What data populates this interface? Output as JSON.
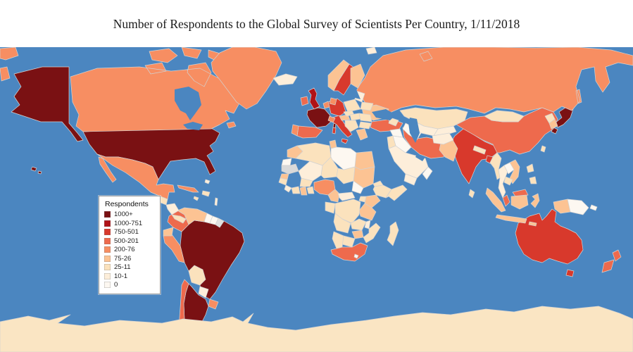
{
  "title": "Number of Respondents to the Global Survey of Scientists Per Country, 1/11/2018",
  "chart_data": {
    "type": "heatmap",
    "subtype": "choropleth-world-map",
    "title": "Number of Respondents to the Global Survey of Scientists Per Country, 1/11/2018",
    "ocean_color": "#4b86c0",
    "no_data_color": "#d9d9d9",
    "antarctica_color": "#fae5c3",
    "legend_position": "lower-left",
    "legend": {
      "title": "Respondents",
      "classes": [
        {
          "label": "1000+",
          "color": "#7a1113"
        },
        {
          "label": "1000-751",
          "color": "#b01217"
        },
        {
          "label": "750-501",
          "color": "#d8392c"
        },
        {
          "label": "500-201",
          "color": "#ee6a4d"
        },
        {
          "label": "200-76",
          "color": "#f78e62"
        },
        {
          "label": "75-26",
          "color": "#fcc393"
        },
        {
          "label": "25-11",
          "color": "#fbe2bd"
        },
        {
          "label": "10-1",
          "color": "#fdeeda"
        },
        {
          "label": "0",
          "color": "#fdf8f1"
        }
      ]
    },
    "countries": [
      {
        "id": "united-states",
        "label": "United States",
        "class": "1000+"
      },
      {
        "id": "france",
        "label": "France",
        "class": "1000+"
      },
      {
        "id": "brazil",
        "label": "Brazil",
        "class": "1000+"
      },
      {
        "id": "argentina",
        "label": "Argentina",
        "class": "1000+"
      },
      {
        "id": "japan",
        "label": "Japan",
        "class": "1000+"
      },
      {
        "id": "united-kingdom",
        "label": "United Kingdom",
        "class": "1000-751"
      },
      {
        "id": "germany",
        "label": "Germany",
        "class": "750-501"
      },
      {
        "id": "italy",
        "label": "Italy",
        "class": "750-501"
      },
      {
        "id": "sweden",
        "label": "Sweden",
        "class": "750-501"
      },
      {
        "id": "india",
        "label": "India",
        "class": "750-501"
      },
      {
        "id": "bangladesh",
        "label": "Bangladesh",
        "class": "750-501"
      },
      {
        "id": "australia",
        "label": "Australia",
        "class": "750-501"
      },
      {
        "id": "spain",
        "label": "Spain",
        "class": "500-201"
      },
      {
        "id": "ireland",
        "label": "Ireland",
        "class": "500-201"
      },
      {
        "id": "chile",
        "label": "Chile",
        "class": "500-201"
      },
      {
        "id": "colombia",
        "label": "Colombia",
        "class": "500-201"
      },
      {
        "id": "turkey",
        "label": "Turkey",
        "class": "500-201"
      },
      {
        "id": "iran",
        "label": "Iran",
        "class": "500-201"
      },
      {
        "id": "china",
        "label": "China",
        "class": "500-201"
      },
      {
        "id": "malaysia",
        "label": "Malaysia",
        "class": "500-201"
      },
      {
        "id": "new-zealand",
        "label": "New Zealand",
        "class": "500-201"
      },
      {
        "id": "south-africa",
        "label": "South Africa",
        "class": "500-201"
      },
      {
        "id": "canada",
        "label": "Canada",
        "class": "200-76"
      },
      {
        "id": "greenland",
        "label": "Greenland",
        "class": "200-76"
      },
      {
        "id": "mexico",
        "label": "Mexico",
        "class": "200-76"
      },
      {
        "id": "cuba",
        "label": "Cuba",
        "class": "200-76"
      },
      {
        "id": "russia",
        "label": "Russia",
        "class": "200-76"
      },
      {
        "id": "peru",
        "label": "Peru",
        "class": "200-76"
      },
      {
        "id": "uruguay",
        "label": "Uruguay",
        "class": "200-76"
      },
      {
        "id": "portugal",
        "label": "Portugal",
        "class": "200-76"
      },
      {
        "id": "switzerland",
        "label": "Switzerland",
        "class": "200-76"
      },
      {
        "id": "denmark",
        "label": "Denmark",
        "class": "200-76"
      },
      {
        "id": "belgium-netherlands",
        "label": "Belgium / Netherlands",
        "class": "200-76"
      },
      {
        "id": "nigeria",
        "label": "Nigeria",
        "class": "200-76"
      },
      {
        "id": "venezuela",
        "label": "Venezuela",
        "class": "75-26"
      },
      {
        "id": "ecuador",
        "label": "Ecuador",
        "class": "75-26"
      },
      {
        "id": "norway",
        "label": "Norway",
        "class": "75-26"
      },
      {
        "id": "finland",
        "label": "Finland",
        "class": "75-26"
      },
      {
        "id": "ukraine",
        "label": "Ukraine",
        "class": "75-26"
      },
      {
        "id": "greece",
        "label": "Greece",
        "class": "75-26"
      },
      {
        "id": "austria",
        "label": "Austria",
        "class": "75-26"
      },
      {
        "id": "pakistan",
        "label": "Pakistan",
        "class": "75-26"
      },
      {
        "id": "vietnam",
        "label": "Vietnam",
        "class": "75-26"
      },
      {
        "id": "south-korea",
        "label": "South Korea",
        "class": "75-26"
      },
      {
        "id": "indonesia",
        "label": "Indonesia",
        "class": "75-26"
      },
      {
        "id": "papua-indonesia",
        "label": "Papua (Indonesia)",
        "class": "75-26"
      },
      {
        "id": "morocco",
        "label": "Morocco",
        "class": "75-26"
      },
      {
        "id": "tunisia",
        "label": "Tunisia",
        "class": "75-26"
      },
      {
        "id": "egypt",
        "label": "Egypt",
        "class": "75-26"
      },
      {
        "id": "sudan",
        "label": "Sudan",
        "class": "75-26"
      },
      {
        "id": "senegal",
        "label": "Senegal",
        "class": "75-26"
      },
      {
        "id": "ghana",
        "label": "Ghana",
        "class": "75-26"
      },
      {
        "id": "cameroon",
        "label": "Cameroon",
        "class": "75-26"
      },
      {
        "id": "kenya",
        "label": "Kenya",
        "class": "75-26"
      },
      {
        "id": "tanzania",
        "label": "Tanzania",
        "class": "75-26"
      },
      {
        "id": "zimbabwe",
        "label": "Zimbabwe",
        "class": "75-26"
      },
      {
        "id": "poland",
        "label": "Poland",
        "class": "25-11"
      },
      {
        "id": "czechia",
        "label": "Czechia",
        "class": "25-11"
      },
      {
        "id": "hungary-slovakia",
        "label": "Hungary / Slovakia",
        "class": "25-11"
      },
      {
        "id": "balkans",
        "label": "Balkans",
        "class": "25-11"
      },
      {
        "id": "romania",
        "label": "Romania",
        "class": "25-11"
      },
      {
        "id": "bulgaria",
        "label": "Bulgaria",
        "class": "25-11"
      },
      {
        "id": "belarus",
        "label": "Belarus",
        "class": "25-11"
      },
      {
        "id": "caucasus",
        "label": "Caucasus",
        "class": "25-11"
      },
      {
        "id": "mongolia",
        "label": "Mongolia",
        "class": "25-11"
      },
      {
        "id": "nepal",
        "label": "Nepal",
        "class": "25-11"
      },
      {
        "id": "myanmar",
        "label": "Myanmar",
        "class": "25-11"
      },
      {
        "id": "cambodia",
        "label": "Cambodia",
        "class": "25-11"
      },
      {
        "id": "sri-lanka",
        "label": "Sri Lanka",
        "class": "25-11"
      },
      {
        "id": "north-korea",
        "label": "North Korea",
        "class": "25-11"
      },
      {
        "id": "taiwan",
        "label": "Taiwan",
        "class": "25-11"
      },
      {
        "id": "philippines",
        "label": "Philippines",
        "class": "25-11"
      },
      {
        "id": "algeria",
        "label": "Algeria",
        "class": "25-11"
      },
      {
        "id": "niger",
        "label": "Niger",
        "class": "25-11"
      },
      {
        "id": "chad",
        "label": "Chad",
        "class": "25-11"
      },
      {
        "id": "eritrea",
        "label": "Eritrea",
        "class": "25-11"
      },
      {
        "id": "ethiopia",
        "label": "Ethiopia",
        "class": "25-11"
      },
      {
        "id": "somalia",
        "label": "Somalia",
        "class": "25-11"
      },
      {
        "id": "guinea",
        "label": "Guinea",
        "class": "25-11"
      },
      {
        "id": "ivory-coast",
        "label": "Ivory Coast",
        "class": "25-11"
      },
      {
        "id": "togo-benin",
        "label": "Togo / Benin",
        "class": "25-11"
      },
      {
        "id": "burkina-faso",
        "label": "Burkina Faso",
        "class": "25-11"
      },
      {
        "id": "gabon-congo",
        "label": "Gabon / Congo",
        "class": "25-11"
      },
      {
        "id": "dr-congo",
        "label": "DR Congo",
        "class": "25-11"
      },
      {
        "id": "uganda",
        "label": "Uganda",
        "class": "25-11"
      },
      {
        "id": "angola",
        "label": "Angola",
        "class": "25-11"
      },
      {
        "id": "zambia",
        "label": "Zambia",
        "class": "25-11"
      },
      {
        "id": "mozambique",
        "label": "Mozambique",
        "class": "25-11"
      },
      {
        "id": "botswana",
        "label": "Botswana",
        "class": "25-11"
      },
      {
        "id": "namibia",
        "label": "Namibia",
        "class": "25-11"
      },
      {
        "id": "madagascar",
        "label": "Madagascar",
        "class": "25-11"
      },
      {
        "id": "guatemala",
        "label": "Guatemala",
        "class": "25-11"
      },
      {
        "id": "hispaniola",
        "label": "Hispaniola",
        "class": "25-11"
      },
      {
        "id": "jamaica",
        "label": "Jamaica",
        "class": "25-11"
      },
      {
        "id": "costa-rica-panama",
        "label": "Costa Rica / Panama",
        "class": "25-11"
      },
      {
        "id": "bolivia",
        "label": "Bolivia",
        "class": "25-11"
      },
      {
        "id": "iceland",
        "label": "Iceland",
        "class": "10-1"
      },
      {
        "id": "baltics",
        "label": "Baltic States",
        "class": "10-1"
      },
      {
        "id": "svalbard",
        "label": "Svalbard",
        "class": "10-1"
      },
      {
        "id": "uzbekistan",
        "label": "Uzbekistan",
        "class": "10-1"
      },
      {
        "id": "kyrgyzstan-tajikistan",
        "label": "Kyrgyzstan / Tajikistan",
        "class": "10-1"
      },
      {
        "id": "kazakhstan",
        "label": "Kazakhstan",
        "class": "25-11"
      },
      {
        "id": "afghanistan",
        "label": "Afghanistan",
        "class": "10-1"
      },
      {
        "id": "saudi-arabia",
        "label": "Saudi Arabia",
        "class": "10-1"
      },
      {
        "id": "yemen",
        "label": "Yemen",
        "class": "10-1"
      },
      {
        "id": "thailand",
        "label": "Thailand",
        "class": "10-1"
      },
      {
        "id": "honduras-nicaragua",
        "label": "Honduras / Nicaragua",
        "class": "10-1"
      },
      {
        "id": "paraguay",
        "label": "Paraguay",
        "class": "10-1"
      },
      {
        "id": "bahamas",
        "label": "Bahamas",
        "class": "10-1"
      },
      {
        "id": "lesser-antilles",
        "label": "Lesser Antilles",
        "class": "10-1"
      },
      {
        "id": "malawi",
        "label": "Malawi",
        "class": "10-1"
      },
      {
        "id": "sierra-leone-liberia",
        "label": "Sierra Leone / Liberia",
        "class": "10-1"
      },
      {
        "id": "central-african-republic",
        "label": "Central African Republic",
        "class": "10-1"
      },
      {
        "id": "mali",
        "label": "Mali",
        "class": "10-1"
      },
      {
        "id": "libya",
        "label": "Libya",
        "class": "0"
      },
      {
        "id": "laos",
        "label": "Laos",
        "class": "0"
      },
      {
        "id": "oman",
        "label": "Oman",
        "class": "0"
      },
      {
        "id": "syria",
        "label": "Syria",
        "class": "0"
      },
      {
        "id": "iraq",
        "label": "Iraq",
        "class": "0"
      },
      {
        "id": "israel-jordan",
        "label": "Israel / Jordan",
        "class": "25-11"
      },
      {
        "id": "turkmenistan",
        "label": "Turkmenistan",
        "class": "0"
      },
      {
        "id": "south-sudan",
        "label": "South Sudan",
        "class": "0"
      },
      {
        "id": "guyana",
        "label": "Guyana",
        "class": "0"
      },
      {
        "id": "suriname",
        "label": "Suriname",
        "class": "0"
      },
      {
        "id": "falkland-islands",
        "label": "Falkland Islands",
        "class": "0"
      },
      {
        "id": "lesotho",
        "label": "Lesotho",
        "class": "0"
      },
      {
        "id": "western-sahara",
        "label": "Western Sahara",
        "class": "0"
      },
      {
        "id": "papua-new-guinea",
        "label": "Papua New Guinea",
        "class": "0"
      },
      {
        "id": "mauritania",
        "label": "Mauritania",
        "class": "0",
        "fill": "#d9d9d9"
      },
      {
        "id": "french-guiana",
        "label": "French Guiana",
        "class": "0",
        "fill": "#e0e0e0"
      },
      {
        "id": "antarctica",
        "label": "Antarctica",
        "class": "0",
        "fill": "#fae5c3"
      }
    ]
  }
}
